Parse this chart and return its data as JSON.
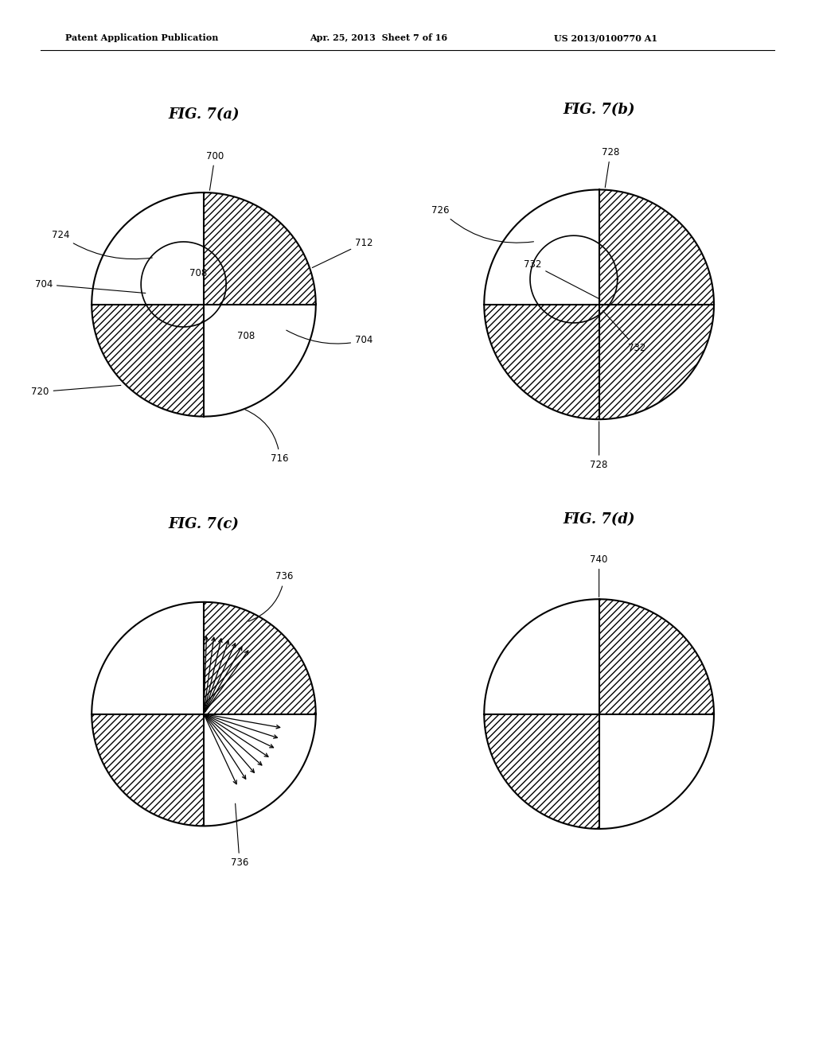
{
  "bg_color": "#ffffff",
  "header_left": "Patent Application Publication",
  "header_mid": "Apr. 25, 2013  Sheet 7 of 16",
  "header_right": "US 2013/0100770 A1",
  "fig_titles": [
    "FIG. 7(a)",
    "FIG. 7(b)",
    "FIG. 7(c)",
    "FIG. 7(d)"
  ],
  "hatch_pattern": "////",
  "line_color": "#000000",
  "hatch_color": "#000000",
  "label_fontsize": 8.5,
  "title_fontsize": 13,
  "header_fontsize": 8
}
